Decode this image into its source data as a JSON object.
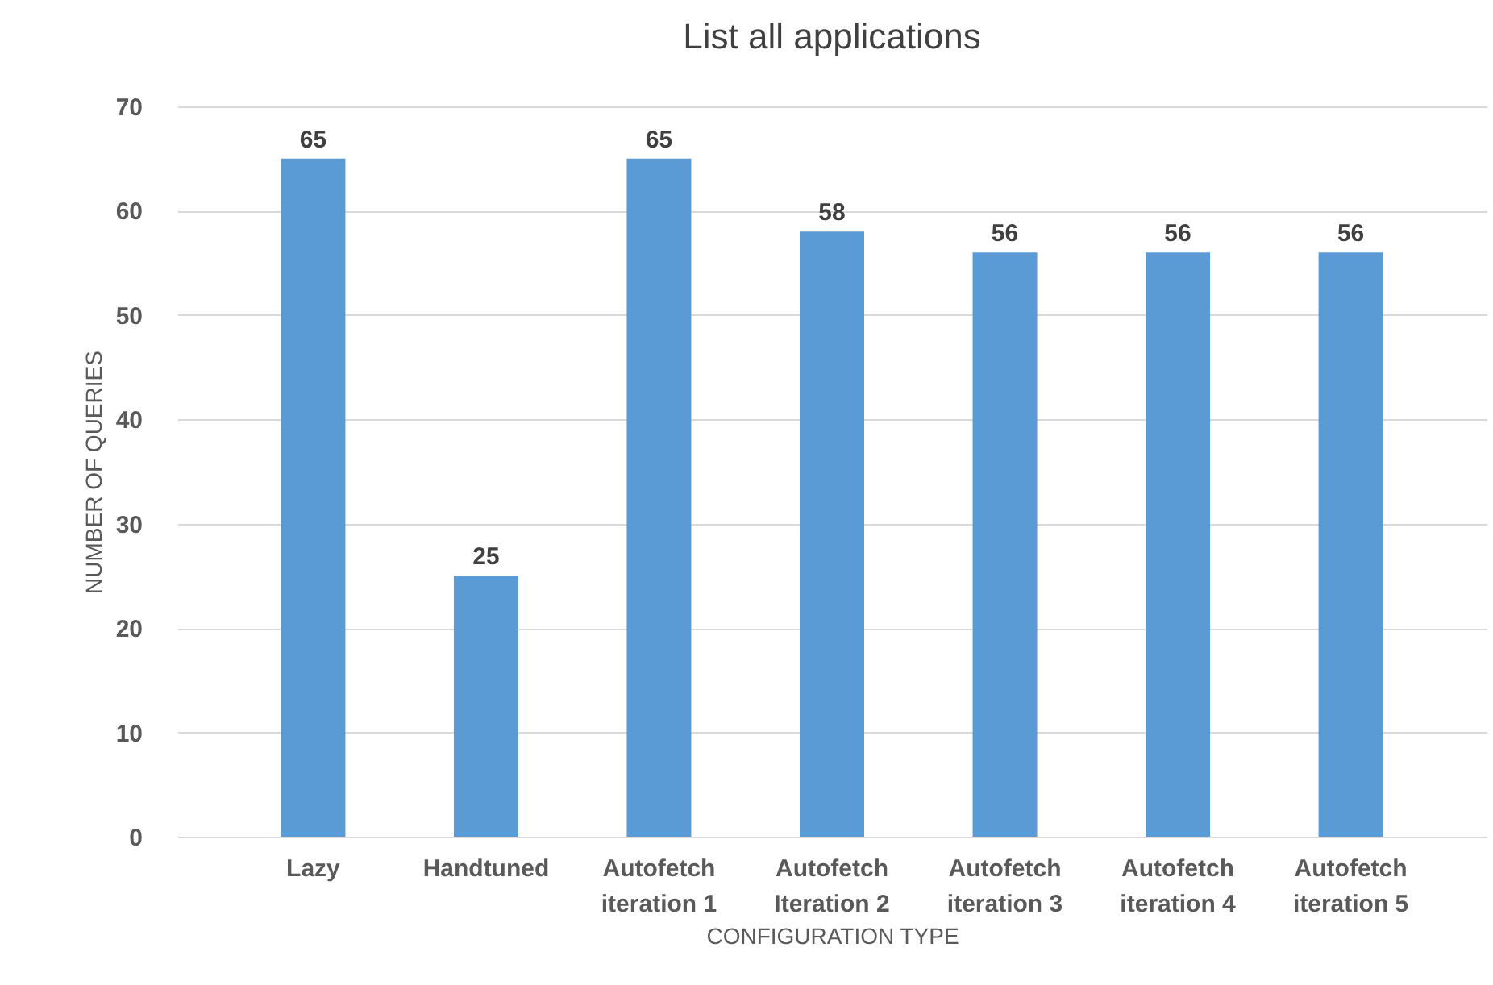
{
  "chart_data": {
    "type": "bar",
    "title": "List all applications",
    "xlabel": "CONFIGURATION TYPE",
    "ylabel": "NUMBER OF QUERIES",
    "categories": [
      "Lazy",
      "Handtuned",
      "Autofetch iteration 1",
      "Autofetch Iteration 2",
      "Autofetch iteration 3",
      "Autofetch iteration 4",
      "Autofetch iteration 5"
    ],
    "values": [
      65,
      25,
      65,
      58,
      56,
      56,
      56
    ],
    "color": "#5b9bd5",
    "ylim": [
      0,
      70
    ],
    "yticks": [
      0,
      10,
      20,
      30,
      40,
      50,
      60,
      70
    ],
    "grid": "y",
    "data_labels": true
  }
}
